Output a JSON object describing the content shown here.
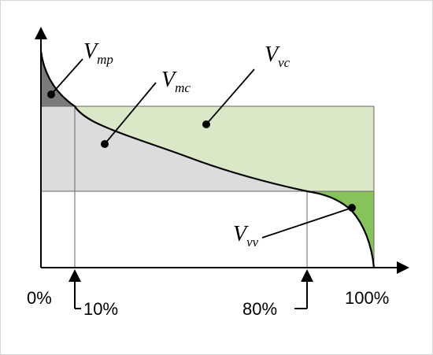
{
  "colors": {
    "mp": "#7a7a7a",
    "mc": "#dcdcdc",
    "vc": "#dbe8c8",
    "vv": "#86c45a",
    "line": "#000000",
    "grid": "#555555"
  },
  "labels": {
    "mp": {
      "main": "V",
      "sub": "mp"
    },
    "mc": {
      "main": "V",
      "sub": "mc"
    },
    "vc": {
      "main": "V",
      "sub": "vc"
    },
    "vv": {
      "main": "V",
      "sub": "vv"
    }
  },
  "ticks": {
    "start": "0%",
    "p10": "10%",
    "p80": "80%",
    "end": "100%"
  }
}
